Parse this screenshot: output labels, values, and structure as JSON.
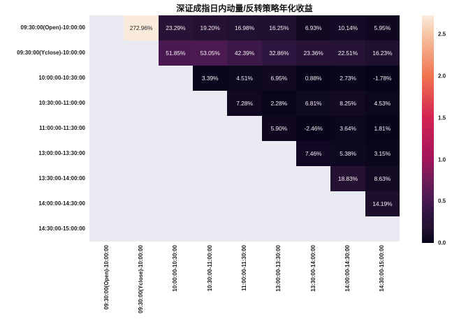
{
  "title": "深证成指日内动量/反转策略年化收益",
  "chart_data": {
    "type": "heatmap",
    "title": "深证成指日内动量/反转策略年化收益",
    "x_labels": [
      "09:30:00(Open)-10:00:00",
      "09:30:00(Yclose)-10:00:00",
      "10:00:00-10:30:00",
      "10:30:00-11:00:00",
      "11:00:00-11:30:00",
      "13:00:00-13:30:00",
      "13:30:00-14:00:00",
      "14:00:00-14:30:00",
      "14:30:00-15:00:00"
    ],
    "y_labels": [
      "09:30:00(Open)-10:00:00",
      "09:30:00(Yclose)-10:00:00",
      "10:00:00-10:30:00",
      "10:30:00-11:00:00",
      "11:00:00-11:30:00",
      "13:00:00-13:30:00",
      "13:30:00-14:00:00",
      "14:00:00-14:30:00",
      "14:30:00-15:00:00"
    ],
    "matrix": [
      [
        null,
        2.7296,
        0.2329,
        0.192,
        0.1698,
        0.1625,
        0.0693,
        0.1014,
        0.0595
      ],
      [
        null,
        null,
        0.5185,
        0.5305,
        0.4239,
        0.3286,
        0.2336,
        0.2251,
        0.1623
      ],
      [
        null,
        null,
        null,
        0.0339,
        0.0451,
        0.0695,
        0.0088,
        0.0273,
        -0.0178
      ],
      [
        null,
        null,
        null,
        null,
        0.0728,
        0.0228,
        0.0681,
        0.0825,
        0.0453
      ],
      [
        null,
        null,
        null,
        null,
        null,
        0.059,
        -0.0246,
        0.0364,
        0.0181
      ],
      [
        null,
        null,
        null,
        null,
        null,
        null,
        0.0746,
        0.0538,
        0.0315
      ],
      [
        null,
        null,
        null,
        null,
        null,
        null,
        null,
        0.1883,
        0.0863
      ],
      [
        null,
        null,
        null,
        null,
        null,
        null,
        null,
        null,
        0.1419
      ],
      [
        null,
        null,
        null,
        null,
        null,
        null,
        null,
        null,
        null
      ]
    ],
    "annotations": [
      [
        "",
        "272.96%",
        "23.29%",
        "19.20%",
        "16.98%",
        "16.25%",
        "6.93%",
        "10.14%",
        "5.95%"
      ],
      [
        "",
        "",
        "51.85%",
        "53.05%",
        "42.39%",
        "32.86%",
        "23.36%",
        "22.51%",
        "16.23%"
      ],
      [
        "",
        "",
        "",
        "3.39%",
        "4.51%",
        "6.95%",
        "0.88%",
        "2.73%",
        "-1.78%"
      ],
      [
        "",
        "",
        "",
        "",
        "7.28%",
        "2.28%",
        "6.81%",
        "8.25%",
        "4.53%"
      ],
      [
        "",
        "",
        "",
        "",
        "",
        "5.90%",
        "-2.46%",
        "3.64%",
        "1.81%"
      ],
      [
        "",
        "",
        "",
        "",
        "",
        "",
        "7.46%",
        "5.38%",
        "3.15%"
      ],
      [
        "",
        "",
        "",
        "",
        "",
        "",
        "",
        "18.83%",
        "8.63%"
      ],
      [
        "",
        "",
        "",
        "",
        "",
        "",
        "",
        "",
        "14.19%"
      ],
      [
        "",
        "",
        "",
        "",
        "",
        "",
        "",
        "",
        ""
      ]
    ],
    "vmin": 0,
    "vmax": 2.7296,
    "grid": false,
    "legend_position": "right-colorbar",
    "colorbar": {
      "tick_labels": [
        "0.0",
        "0.5",
        "1.0",
        "1.5",
        "2.0",
        "2.5"
      ],
      "tick_values": [
        0.0,
        0.5,
        1.0,
        1.5,
        2.0,
        2.5
      ]
    },
    "colormap": {
      "name": "rocket",
      "anchors": [
        [
          0.0,
          "#050418"
        ],
        [
          0.07,
          "#251233"
        ],
        [
          0.125,
          "#2e1640"
        ],
        [
          0.183,
          "#471950"
        ],
        [
          0.27,
          "#6c1d57"
        ],
        [
          0.366,
          "#a1155b"
        ],
        [
          0.55,
          "#d42352"
        ],
        [
          0.733,
          "#f0734e"
        ],
        [
          0.916,
          "#f6c5a3"
        ],
        [
          1.0,
          "#faebdd"
        ]
      ]
    },
    "colors": {
      "masked_cell": "#eaeaf2",
      "figure_background": "#ffffff",
      "tick_text": "#1c1c1c",
      "annotation_light": "#f0ecf0",
      "annotation_dark": "#262626"
    }
  }
}
